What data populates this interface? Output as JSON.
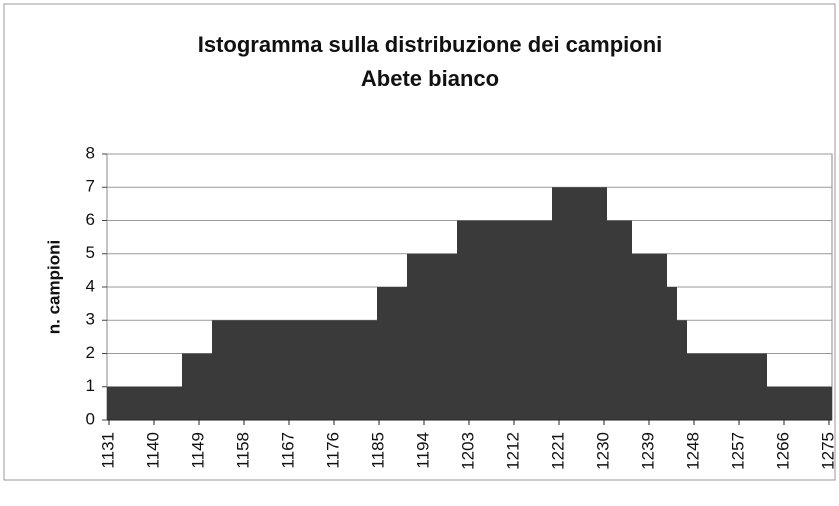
{
  "chart_data": {
    "type": "histogram",
    "title": "Istogramma sulla distribuzione dei campioni",
    "subtitle": "Abete bianco",
    "y_label": "n. campioni",
    "bins": [
      1131,
      1146,
      1152,
      1185,
      1191,
      1201,
      1220,
      1231,
      1236,
      1243,
      1245,
      1247,
      1263,
      1276
    ],
    "counts": [
      1,
      2,
      3,
      4,
      5,
      6,
      7,
      6,
      5,
      4,
      3,
      2,
      1
    ],
    "color": "#3a3a3a",
    "xlim": [
      1131,
      1276
    ],
    "xticks": [
      1131,
      1140,
      1149,
      1158,
      1167,
      1176,
      1185,
      1194,
      1203,
      1212,
      1221,
      1230,
      1239,
      1248,
      1257,
      1266,
      1275
    ],
    "ylim": [
      0,
      8
    ],
    "yticks": [
      0,
      1,
      2,
      3,
      4,
      5,
      6,
      7,
      8
    ],
    "grid": true
  }
}
